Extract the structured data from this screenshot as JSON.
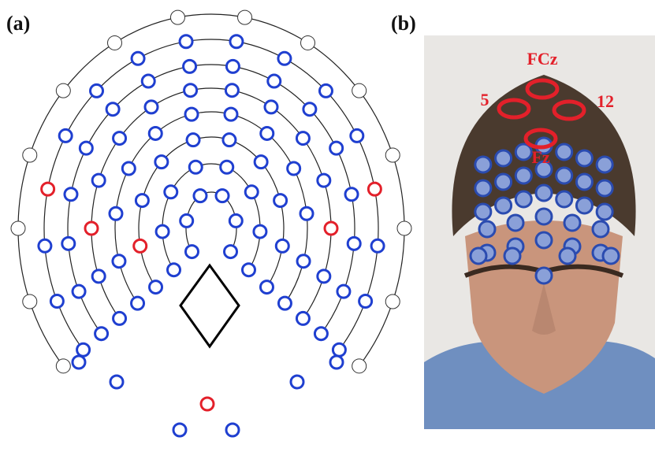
{
  "panels": [
    {
      "label": "(a)"
    },
    {
      "label": "(b)",
      "annotations": [
        "FCz",
        "5",
        "12",
        "Fz"
      ]
    }
  ]
}
